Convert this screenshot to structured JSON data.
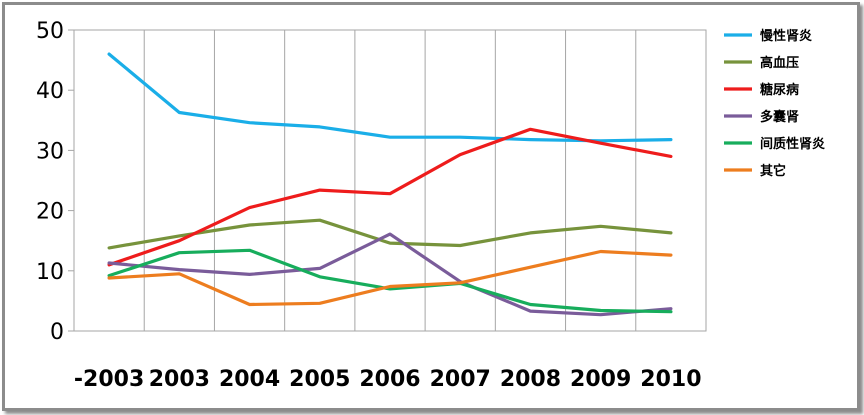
{
  "chart_data": {
    "type": "line",
    "title": "",
    "xlabel": "",
    "ylabel": "",
    "categories": [
      "-2003",
      "2003",
      "2004",
      "2005",
      "2006",
      "2007",
      "2008",
      "2009",
      "2010"
    ],
    "ylim": [
      0,
      50
    ],
    "yticks": [
      0,
      10,
      20,
      30,
      40,
      50
    ],
    "grid": "vertical",
    "legend_position": "right",
    "series": [
      {
        "name": "慢性肾炎",
        "color": "#1aaee8",
        "values": [
          46.0,
          36.3,
          34.6,
          33.9,
          32.2,
          32.2,
          31.8,
          31.6,
          31.8
        ]
      },
      {
        "name": "高血压",
        "color": "#77933c",
        "values": [
          13.8,
          15.8,
          17.6,
          18.4,
          14.6,
          14.2,
          16.3,
          17.4,
          16.3
        ]
      },
      {
        "name": "糖尿病",
        "color": "#ee1c1c",
        "values": [
          11.0,
          15.0,
          20.5,
          23.4,
          22.8,
          29.3,
          33.5,
          31.2,
          29.0
        ]
      },
      {
        "name": "多囊肾",
        "color": "#7a5c9a",
        "values": [
          11.3,
          10.2,
          9.4,
          10.4,
          16.1,
          8.2,
          3.3,
          2.7,
          3.7
        ]
      },
      {
        "name": "间质性肾炎",
        "color": "#17ad5c",
        "values": [
          9.2,
          13.0,
          13.4,
          9.0,
          7.0,
          7.9,
          4.4,
          3.4,
          3.2
        ]
      },
      {
        "name": "其它",
        "color": "#ed7d1f",
        "values": [
          8.8,
          9.5,
          4.4,
          4.6,
          7.4,
          8.0,
          10.6,
          13.2,
          12.6
        ]
      }
    ]
  }
}
